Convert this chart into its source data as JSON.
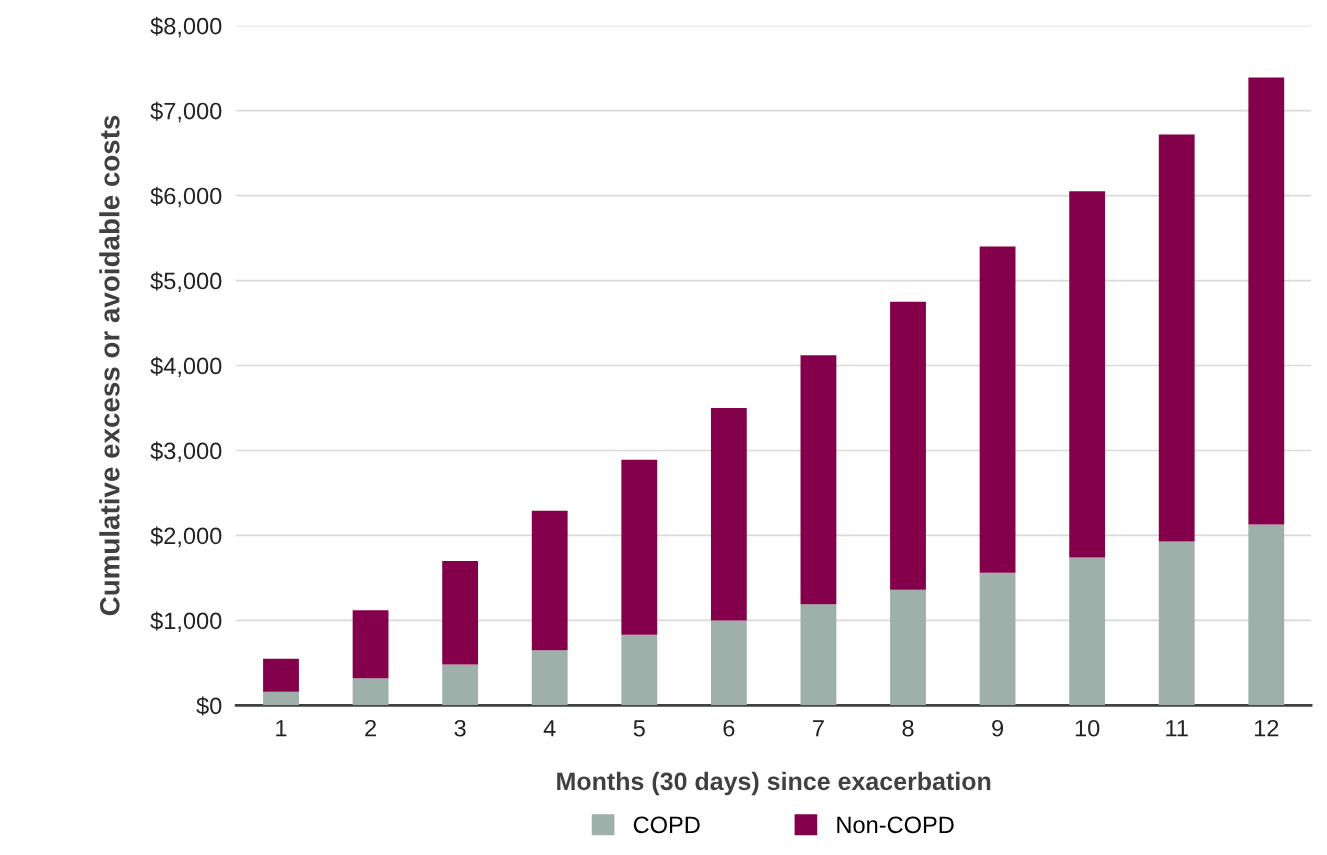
{
  "chart_data": {
    "type": "bar",
    "stacked": true,
    "xlabel": "Months (30 days) since exacerbation",
    "ylabel": "Cumulative excess or avoidable costs",
    "categories": [
      "1",
      "2",
      "3",
      "4",
      "5",
      "6",
      "7",
      "8",
      "9",
      "10",
      "11",
      "12"
    ],
    "series": [
      {
        "name": "COPD",
        "color": "#9fafa9",
        "values": [
          160,
          320,
          480,
          650,
          830,
          1000,
          1190,
          1360,
          1560,
          1740,
          1930,
          2130
        ]
      },
      {
        "name": "Non-COPD",
        "color": "#85004b",
        "values": [
          390,
          800,
          1220,
          1640,
          2060,
          2500,
          2930,
          3390,
          3840,
          4310,
          4790,
          5260
        ]
      }
    ],
    "ylim": [
      0,
      8000
    ],
    "yticks": [
      {
        "value": 0,
        "label": "$0"
      },
      {
        "value": 1000,
        "label": "$1,000"
      },
      {
        "value": 2000,
        "label": "$2,000"
      },
      {
        "value": 3000,
        "label": "$3,000"
      },
      {
        "value": 4000,
        "label": "$4,000"
      },
      {
        "value": 5000,
        "label": "$5,000"
      },
      {
        "value": 6000,
        "label": "$6,000"
      },
      {
        "value": 7000,
        "label": "$7,000"
      },
      {
        "value": 8000,
        "label": "$8,000"
      }
    ],
    "grid": "y",
    "legend": "bottom"
  }
}
